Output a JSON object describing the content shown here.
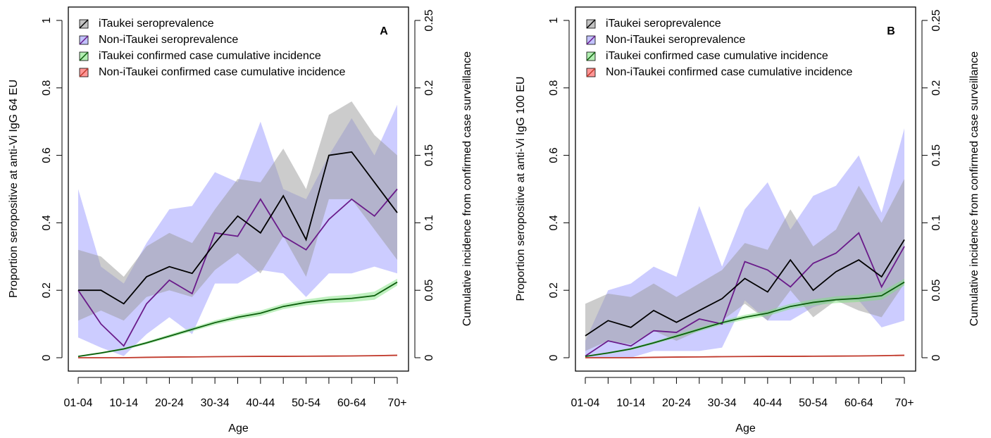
{
  "chart_data": [
    {
      "type": "line",
      "panel_label": "A",
      "x_label": "Age",
      "y_label": "Proportion seropositive at anti-Vi IgG 64 EU",
      "y2_label": "Cumulative incidence from confirmed case surveillance",
      "categories": [
        "01-04",
        null,
        "10-14",
        null,
        "20-24",
        null,
        "30-34",
        null,
        "40-44",
        null,
        "50-54",
        null,
        "60-64",
        null,
        "70+"
      ],
      "ylim": [
        0,
        1
      ],
      "yticks": [
        0,
        0.2,
        0.4,
        0.6,
        0.8,
        1
      ],
      "y2lim": [
        0,
        0.25
      ],
      "y2ticks": [
        0,
        0.05,
        0.1,
        0.15,
        0.2,
        0.25
      ],
      "series": [
        {
          "name": "Non-iTaukei seroprevalence",
          "color": "#6a1b8a",
          "band_color": "#9a9aff",
          "values": [
            0.2,
            0.1,
            0.035,
            0.16,
            0.23,
            0.19,
            0.37,
            0.36,
            0.47,
            0.36,
            0.32,
            0.41,
            0.47,
            0.42,
            0.5
          ],
          "lower": [
            0.06,
            0.03,
            0.005,
            0.07,
            0.12,
            0.07,
            0.22,
            0.22,
            0.26,
            0.25,
            0.18,
            0.25,
            0.25,
            0.27,
            0.25
          ],
          "upper": [
            0.5,
            0.27,
            0.22,
            0.34,
            0.44,
            0.45,
            0.55,
            0.52,
            0.7,
            0.5,
            0.47,
            0.6,
            0.71,
            0.6,
            0.75
          ]
        },
        {
          "name": "iTaukei seroprevalence",
          "color": "#000000",
          "band_color": "#999999",
          "values": [
            0.2,
            0.2,
            0.16,
            0.24,
            0.27,
            0.25,
            0.34,
            0.42,
            0.37,
            0.48,
            0.35,
            0.6,
            0.61,
            0.52,
            0.43
          ],
          "lower": [
            0.11,
            0.14,
            0.11,
            0.18,
            0.2,
            0.18,
            0.26,
            0.31,
            0.25,
            0.36,
            0.24,
            0.47,
            0.47,
            0.38,
            0.29
          ],
          "upper": [
            0.32,
            0.3,
            0.24,
            0.33,
            0.37,
            0.34,
            0.44,
            0.53,
            0.52,
            0.62,
            0.5,
            0.72,
            0.76,
            0.66,
            0.6
          ]
        },
        {
          "name": "iTaukei confirmed case cumulative incidence",
          "color": "#0b5d0b",
          "band_color": "#7fe27f",
          "axis": "y2",
          "values": [
            0.001,
            0.0035,
            0.0065,
            0.011,
            0.016,
            0.021,
            0.026,
            0.03,
            0.033,
            0.038,
            0.041,
            0.043,
            0.044,
            0.046,
            0.056
          ],
          "lower": [
            0.0005,
            0.0028,
            0.0057,
            0.01,
            0.0148,
            0.0196,
            0.0244,
            0.0282,
            0.031,
            0.036,
            0.0388,
            0.0405,
            0.0413,
            0.043,
            0.0535
          ],
          "upper": [
            0.0015,
            0.0042,
            0.0073,
            0.012,
            0.0172,
            0.0224,
            0.0276,
            0.0318,
            0.035,
            0.04,
            0.0432,
            0.0455,
            0.0467,
            0.049,
            0.0585
          ]
        },
        {
          "name": "Non-iTaukei confirmed case cumulative incidence",
          "color": "#c0392b",
          "band_color": "#ff5050",
          "axis": "y2",
          "values": [
            0,
            0,
            0,
            0.0003,
            0.0005,
            0.0006,
            0.0008,
            0.0009,
            0.001,
            0.001,
            0.0011,
            0.0012,
            0.0013,
            0.0015,
            0.0018
          ],
          "lower": [
            0,
            0,
            0,
            0.0001,
            0.0003,
            0.0004,
            0.0006,
            0.0007,
            0.0008,
            0.0008,
            0.0009,
            0.001,
            0.0011,
            0.0012,
            0.0014
          ],
          "upper": [
            0.0002,
            0.0002,
            0.0003,
            0.0005,
            0.0007,
            0.0008,
            0.001,
            0.0011,
            0.0012,
            0.0012,
            0.0013,
            0.0014,
            0.0016,
            0.0019,
            0.0023
          ]
        }
      ],
      "legend": [
        "iTaukei seroprevalence",
        "Non-iTaukei seroprevalence",
        "iTaukei confirmed case cumulative incidence",
        "Non-iTaukei confirmed case cumulative incidence"
      ]
    },
    {
      "type": "line",
      "panel_label": "B",
      "x_label": "Age",
      "y_label": "Proportion seropositive at anti-Vi IgG 100 EU",
      "y2_label": "Cumulative incidence from confirmed case surveillance",
      "categories": [
        "01-04",
        null,
        "10-14",
        null,
        "20-24",
        null,
        "30-34",
        null,
        "40-44",
        null,
        "50-54",
        null,
        "60-64",
        null,
        "70+"
      ],
      "ylim": [
        0,
        1
      ],
      "yticks": [
        0,
        0.2,
        0.4,
        0.6,
        0.8,
        1
      ],
      "y2lim": [
        0,
        0.25
      ],
      "y2ticks": [
        0,
        0.05,
        0.1,
        0.15,
        0.2,
        0.25
      ],
      "series": [
        {
          "name": "Non-iTaukei seroprevalence",
          "color": "#6a1b8a",
          "band_color": "#9a9aff",
          "values": [
            0.005,
            0.05,
            0.035,
            0.08,
            0.075,
            0.115,
            0.1,
            0.285,
            0.26,
            0.21,
            0.28,
            0.31,
            0.37,
            0.21,
            0.33
          ],
          "lower": [
            0,
            0,
            0,
            0.02,
            0.02,
            0.02,
            0.03,
            0.17,
            0.11,
            0.11,
            0.15,
            0.17,
            0.17,
            0.09,
            0.11
          ],
          "upper": [
            0.05,
            0.2,
            0.22,
            0.27,
            0.24,
            0.45,
            0.27,
            0.44,
            0.52,
            0.38,
            0.48,
            0.51,
            0.6,
            0.43,
            0.68
          ]
        },
        {
          "name": "iTaukei seroprevalence",
          "color": "#000000",
          "band_color": "#999999",
          "values": [
            0.065,
            0.11,
            0.09,
            0.14,
            0.105,
            0.14,
            0.175,
            0.235,
            0.195,
            0.29,
            0.2,
            0.255,
            0.29,
            0.24,
            0.35
          ],
          "lower": [
            0.02,
            0.05,
            0.04,
            0.08,
            0.05,
            0.08,
            0.11,
            0.16,
            0.11,
            0.2,
            0.12,
            0.17,
            0.14,
            0.12,
            0.22
          ],
          "upper": [
            0.16,
            0.19,
            0.18,
            0.22,
            0.18,
            0.22,
            0.26,
            0.34,
            0.32,
            0.44,
            0.33,
            0.38,
            0.51,
            0.4,
            0.53
          ]
        },
        {
          "name": "iTaukei confirmed case cumulative incidence",
          "color": "#0b5d0b",
          "band_color": "#7fe27f",
          "axis": "y2",
          "values": [
            0.001,
            0.0035,
            0.0065,
            0.011,
            0.016,
            0.021,
            0.026,
            0.03,
            0.033,
            0.038,
            0.041,
            0.043,
            0.044,
            0.046,
            0.056
          ],
          "lower": [
            0.0005,
            0.0028,
            0.0057,
            0.01,
            0.0148,
            0.0196,
            0.0244,
            0.0282,
            0.031,
            0.036,
            0.0388,
            0.0405,
            0.0413,
            0.043,
            0.0535
          ],
          "upper": [
            0.0015,
            0.0042,
            0.0073,
            0.012,
            0.0172,
            0.0224,
            0.0276,
            0.0318,
            0.035,
            0.04,
            0.0432,
            0.0455,
            0.0467,
            0.049,
            0.0585
          ]
        },
        {
          "name": "Non-iTaukei confirmed case cumulative incidence",
          "color": "#c0392b",
          "band_color": "#ff5050",
          "axis": "y2",
          "values": [
            0,
            0,
            0,
            0.0003,
            0.0005,
            0.0006,
            0.0008,
            0.0009,
            0.001,
            0.001,
            0.0011,
            0.0012,
            0.0013,
            0.0015,
            0.0018
          ],
          "lower": [
            0,
            0,
            0,
            0.0001,
            0.0003,
            0.0004,
            0.0006,
            0.0007,
            0.0008,
            0.0008,
            0.0009,
            0.001,
            0.0011,
            0.0012,
            0.0014
          ],
          "upper": [
            0.0002,
            0.0002,
            0.0003,
            0.0005,
            0.0007,
            0.0008,
            0.001,
            0.0011,
            0.0012,
            0.0012,
            0.0013,
            0.0014,
            0.0016,
            0.0019,
            0.0023
          ]
        }
      ],
      "legend": [
        "iTaukei seroprevalence",
        "Non-iTaukei seroprevalence",
        "iTaukei confirmed case cumulative incidence",
        "Non-iTaukei confirmed case cumulative incidence"
      ]
    }
  ]
}
